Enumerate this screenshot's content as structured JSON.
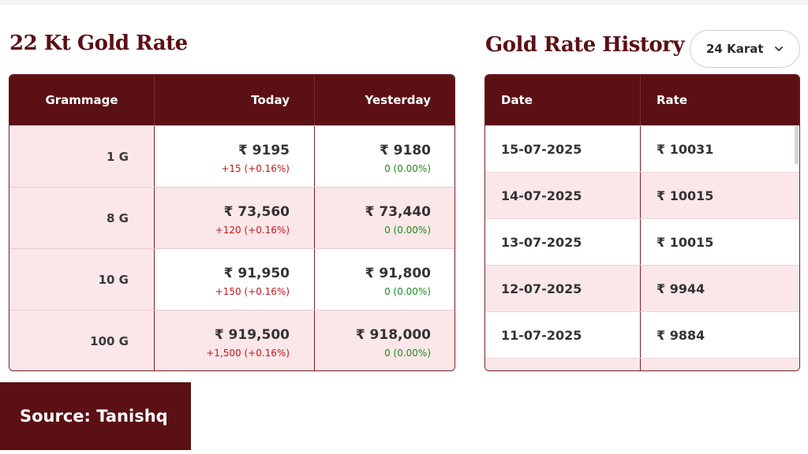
{
  "currency_symbol": "₹",
  "left": {
    "title": "22 Kt Gold Rate",
    "headers": [
      "Grammage",
      "Today",
      "Yesterday"
    ],
    "rows": [
      {
        "grammage": "1 G",
        "today": "₹ 9195",
        "today_change": "+15 (+0.16%)",
        "yesterday": "₹ 9180",
        "yesterday_change": "0 (0.00%)"
      },
      {
        "grammage": "8 G",
        "today": "₹ 73,560",
        "today_change": "+120 (+0.16%)",
        "yesterday": "₹ 73,440",
        "yesterday_change": "0 (0.00%)"
      },
      {
        "grammage": "10 G",
        "today": "₹ 91,950",
        "today_change": "+150 (+0.16%)",
        "yesterday": "₹ 91,800",
        "yesterday_change": "0 (0.00%)"
      },
      {
        "grammage": "100 G",
        "today": "₹ 919,500",
        "today_change": "+1,500 (+0.16%)",
        "yesterday": "₹ 918,000",
        "yesterday_change": "0 (0.00%)"
      }
    ]
  },
  "right": {
    "title": "Gold Rate History",
    "karat_select": {
      "value": "24 Karat",
      "icon": "chevron-down-icon"
    },
    "headers": [
      "Date",
      "Rate"
    ],
    "rows": [
      {
        "date": "15-07-2025",
        "rate": "₹ 10031"
      },
      {
        "date": "14-07-2025",
        "rate": "₹ 10015"
      },
      {
        "date": "13-07-2025",
        "rate": "₹ 10015"
      },
      {
        "date": "12-07-2025",
        "rate": "₹ 9944"
      },
      {
        "date": "11-07-2025",
        "rate": "₹ 9884"
      }
    ]
  },
  "source": "Source: Tanishq",
  "colors": {
    "brand": "#5a1015",
    "row_tint": "#fbe7e9",
    "change_up": "#c0181f",
    "change_flat": "#1e8a1e"
  }
}
